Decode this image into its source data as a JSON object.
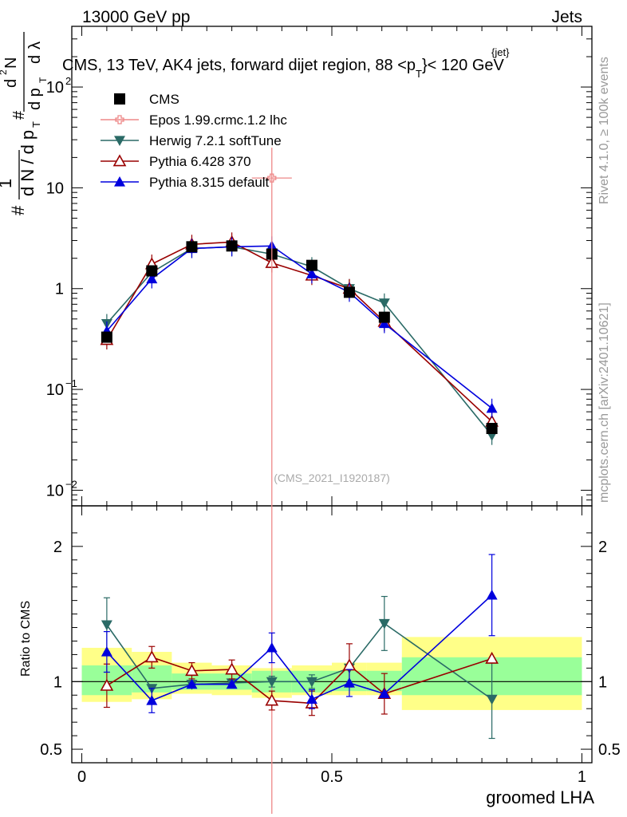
{
  "header": {
    "energy": "13000 GeV pp",
    "category": "Jets",
    "side_rivet": "Rivet 4.1.0, ≥ 100k events",
    "side_mcplots": "mcplots.cern.ch [arXiv:2401.10621]"
  },
  "chart_data": {
    "type": "line",
    "title": "CMS, 13 TeV, AK4 jets, forward dijet region, 88 <p",
    "title_super": "{jet}",
    "title_sub": "T",
    "title_tail": "}< 120 GeV",
    "analysis_tag": "(CMS_2021_I1920187)",
    "xlabel": "groomed LHA",
    "ylabel_main": "1/N dN/dp_T d²N/dp_T dλ",
    "ylabel_ratio": "Ratio to CMS",
    "xlim": [
      -0.02,
      1.02
    ],
    "ylim_main": [
      0.007,
      400
    ],
    "ylim_ratio": [
      0.4,
      2.3
    ],
    "x_ticks": [
      0,
      0.5,
      1
    ],
    "x_tick_labels": [
      "0",
      "0.5",
      "1"
    ],
    "main_y_ticks": [
      {
        "value": 0.01,
        "base": "10",
        "exp": "−2"
      },
      {
        "value": 0.1,
        "base": "10",
        "exp": "−1"
      },
      {
        "value": 1,
        "base": "1",
        "exp": ""
      },
      {
        "value": 10,
        "base": "10",
        "exp": ""
      },
      {
        "value": 100,
        "base": "10",
        "exp": "2"
      }
    ],
    "ratio_y_ticks": [
      0.5,
      1,
      2
    ],
    "ratio_y_tick_labels": [
      "0.5",
      "1",
      "2"
    ],
    "bins": [
      {
        "lo": 0.0,
        "hi": 0.1
      },
      {
        "lo": 0.1,
        "hi": 0.18
      },
      {
        "lo": 0.18,
        "hi": 0.26
      },
      {
        "lo": 0.26,
        "hi": 0.34
      },
      {
        "lo": 0.34,
        "hi": 0.42
      },
      {
        "lo": 0.42,
        "hi": 0.5
      },
      {
        "lo": 0.5,
        "hi": 0.57
      },
      {
        "lo": 0.57,
        "hi": 0.64
      },
      {
        "lo": 0.64,
        "hi": 1.0
      }
    ],
    "band_green": [
      [
        0.9,
        1.12
      ],
      [
        0.92,
        1.12
      ],
      [
        0.94,
        1.06
      ],
      [
        0.94,
        1.06
      ],
      [
        0.92,
        1.08
      ],
      [
        0.92,
        1.08
      ],
      [
        0.93,
        1.08
      ],
      [
        0.93,
        1.08
      ],
      [
        0.9,
        1.18
      ]
    ],
    "band_yellow": [
      [
        0.85,
        1.25
      ],
      [
        0.87,
        1.22
      ],
      [
        0.91,
        1.14
      ],
      [
        0.9,
        1.12
      ],
      [
        0.88,
        1.1
      ],
      [
        0.9,
        1.12
      ],
      [
        0.9,
        1.14
      ],
      [
        0.9,
        1.14
      ],
      [
        0.79,
        1.33
      ]
    ],
    "series": [
      {
        "name": "CMS",
        "color": "#000000",
        "marker": "square",
        "x": [
          0.05,
          0.14,
          0.22,
          0.3,
          0.38,
          0.46,
          0.535,
          0.605,
          0.82
        ],
        "y": [
          0.33,
          1.5,
          2.6,
          2.65,
          2.2,
          1.7,
          0.92,
          0.52,
          0.041
        ],
        "ratio": [
          1,
          1,
          1,
          1,
          1,
          1,
          1,
          1,
          1
        ]
      },
      {
        "name": "Epos 1.99.crmc.1.2 lhc",
        "color": "#ee8888",
        "marker": "open-cross",
        "x": [
          0.38
        ],
        "y": [
          12.5
        ],
        "y_err": [
          [
            0.001,
            25
          ]
        ],
        "x_err": [
          [
            0.34,
            0.42
          ]
        ],
        "ratio": []
      },
      {
        "name": "Herwig 7.2.1 softTune",
        "color": "#2a6a66",
        "marker": "triangle-down",
        "x": [
          0.05,
          0.14,
          0.22,
          0.3,
          0.38,
          0.46,
          0.535,
          0.605,
          0.82
        ],
        "y": [
          0.45,
          1.45,
          2.5,
          2.6,
          2.2,
          1.65,
          1.0,
          0.72,
          0.035
        ],
        "ratio": [
          1.42,
          0.95,
          0.98,
          0.99,
          1.0,
          1.0,
          1.1,
          1.43,
          0.87
        ],
        "ratio_err": [
          0.2,
          0.0,
          0.0,
          0.0,
          0.04,
          0.05,
          0.0,
          0.2,
          0.29
        ]
      },
      {
        "name": "Pythia 6.428 370",
        "color": "#990000",
        "marker": "triangle-open",
        "x": [
          0.05,
          0.14,
          0.22,
          0.3,
          0.38,
          0.46,
          0.535,
          0.605,
          0.82
        ],
        "y": [
          0.31,
          1.75,
          2.75,
          2.9,
          1.8,
          1.35,
          1.0,
          0.47,
          0.048
        ],
        "ratio": [
          0.97,
          1.18,
          1.08,
          1.09,
          0.86,
          0.84,
          1.12,
          0.91,
          1.17
        ],
        "ratio_err": [
          0.16,
          0.08,
          0.06,
          0.07,
          0.07,
          0.09,
          0.16,
          0.15,
          0.0
        ]
      },
      {
        "name": "Pythia 8.315 default",
        "color": "#0000dd",
        "marker": "triangle-up",
        "x": [
          0.05,
          0.14,
          0.22,
          0.3,
          0.38,
          0.46,
          0.535,
          0.605,
          0.82
        ],
        "y": [
          0.38,
          1.25,
          2.5,
          2.6,
          2.65,
          1.4,
          0.92,
          0.45,
          0.065
        ],
        "ratio": [
          1.22,
          0.86,
          0.98,
          0.98,
          1.25,
          0.87,
          0.99,
          0.91,
          1.64
        ],
        "ratio_err": [
          0.15,
          0.09,
          0.0,
          0.0,
          0.11,
          0.07,
          0.1,
          0.0,
          0.3
        ]
      }
    ]
  }
}
